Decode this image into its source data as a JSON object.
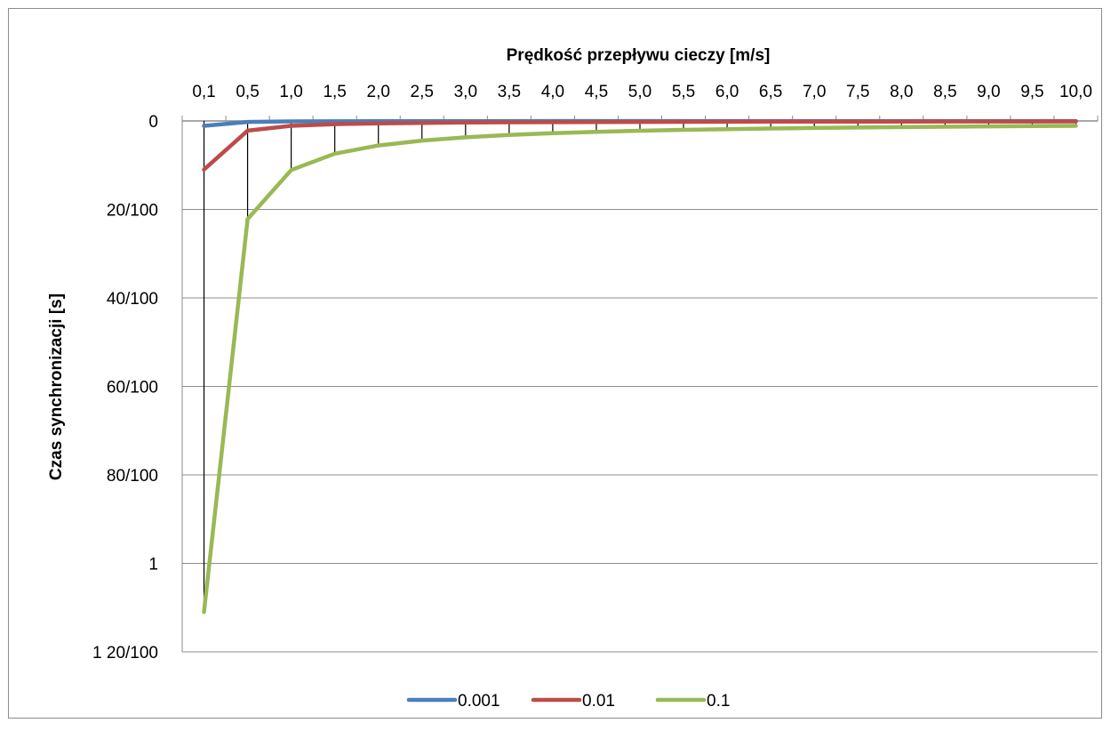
{
  "chart_data": {
    "type": "line",
    "title": "",
    "xlabel": "Prędkość przepływu cieczy [m/s]",
    "ylabel": "Czas synchronizacji [s]",
    "x_position": "top",
    "y_reversed": true,
    "ylim": [
      0,
      1.2
    ],
    "grid": "horizontal",
    "drop_lines": true,
    "legend": "bottom",
    "categories": [
      "0,1",
      "0,5",
      "1,0",
      "1,5",
      "2,0",
      "2,5",
      "3,0",
      "3,5",
      "4,0",
      "4,5",
      "5,0",
      "5,5",
      "6,0",
      "6,5",
      "7,0",
      "7,5",
      "8,0",
      "8,5",
      "9,0",
      "9,5",
      "10,0"
    ],
    "y_ticks": [
      {
        "value": 0,
        "label": "0"
      },
      {
        "value": 0.2,
        "label": "20/100"
      },
      {
        "value": 0.4,
        "label": "40/100"
      },
      {
        "value": 0.6,
        "label": "60/100"
      },
      {
        "value": 0.8,
        "label": "80/100"
      },
      {
        "value": 1.0,
        "label": "1"
      },
      {
        "value": 1.2,
        "label": "1 20/100"
      }
    ],
    "series": [
      {
        "name": "0.001",
        "color": "#4a7ebb",
        "values": [
          0.011,
          0.0022,
          0.0011,
          0.00073,
          0.00055,
          0.00044,
          0.00037,
          0.00031,
          0.00028,
          0.00024,
          0.00022,
          0.0002,
          0.00018,
          0.00017,
          0.00016,
          0.00015,
          0.00014,
          0.00013,
          0.00012,
          0.00012,
          0.00011
        ]
      },
      {
        "name": "0.01",
        "color": "#be4b48",
        "values": [
          0.11,
          0.022,
          0.011,
          0.0073,
          0.0055,
          0.0044,
          0.0037,
          0.0031,
          0.0028,
          0.0024,
          0.0022,
          0.002,
          0.0018,
          0.0017,
          0.0016,
          0.0015,
          0.0014,
          0.0013,
          0.0012,
          0.0012,
          0.0011
        ]
      },
      {
        "name": "0.1",
        "color": "#98b954",
        "values": [
          1.11,
          0.222,
          0.111,
          0.074,
          0.0555,
          0.0444,
          0.037,
          0.0317,
          0.0278,
          0.0247,
          0.0222,
          0.0202,
          0.0185,
          0.0171,
          0.0159,
          0.0148,
          0.0139,
          0.0131,
          0.0123,
          0.0117,
          0.0111
        ]
      }
    ]
  }
}
